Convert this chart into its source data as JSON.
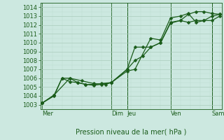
{
  "background_color": "#cce8e0",
  "grid_color_major": "#aaccbb",
  "grid_color_minor": "#bbddd0",
  "line_color": "#1a5c1a",
  "xlabel": "Pression niveau de la mer( hPa )",
  "ylim": [
    1002.5,
    1014.5
  ],
  "yticks": [
    1003,
    1004,
    1005,
    1006,
    1007,
    1008,
    1009,
    1010,
    1011,
    1012,
    1013,
    1014
  ],
  "xlim": [
    -0.1,
    9.1
  ],
  "x_day_labels": [
    "Mer",
    "Dim",
    "Jeu",
    "Ven",
    "Sam"
  ],
  "x_day_positions": [
    0.0,
    3.5,
    4.3,
    6.5,
    8.6
  ],
  "x_vlines": [
    0.0,
    3.5,
    4.3,
    6.5,
    8.6
  ],
  "line1_x": [
    0.0,
    0.6,
    1.0,
    1.4,
    1.8,
    2.2,
    2.6,
    3.0,
    3.5,
    4.3,
    4.7,
    5.1,
    5.5,
    6.0,
    6.5,
    7.0,
    7.4,
    7.8,
    8.2,
    8.6,
    9.0
  ],
  "line1_y": [
    1003.2,
    1004.0,
    1006.0,
    1006.0,
    1005.5,
    1005.3,
    1005.2,
    1005.3,
    1005.5,
    1007.0,
    1009.5,
    1009.5,
    1009.5,
    1010.0,
    1012.2,
    1012.5,
    1013.2,
    1013.5,
    1013.5,
    1013.3,
    1013.2
  ],
  "line2_x": [
    0.0,
    0.6,
    1.0,
    1.4,
    1.8,
    2.2,
    2.6,
    3.0,
    3.5,
    4.3,
    4.7,
    5.1,
    5.5,
    6.0,
    6.5,
    7.0,
    7.4,
    7.8,
    8.2,
    8.6,
    9.0
  ],
  "line2_y": [
    1003.2,
    1004.1,
    1006.0,
    1005.6,
    1005.5,
    1005.3,
    1005.3,
    1005.4,
    1005.5,
    1007.0,
    1008.0,
    1008.5,
    1009.5,
    1010.0,
    1012.3,
    1012.5,
    1012.3,
    1012.5,
    1012.5,
    1012.5,
    1013.0
  ],
  "line3_x": [
    0.0,
    0.6,
    1.4,
    2.0,
    2.6,
    3.2,
    3.5,
    4.3,
    4.7,
    5.5,
    6.0,
    6.5,
    7.0,
    7.4,
    7.8,
    8.2,
    8.6,
    9.0
  ],
  "line3_y": [
    1003.2,
    1004.1,
    1006.0,
    1005.7,
    1005.4,
    1005.3,
    1005.5,
    1006.8,
    1007.0,
    1010.5,
    1010.3,
    1012.8,
    1013.0,
    1013.3,
    1012.3,
    1012.5,
    1013.0,
    1013.2
  ],
  "marker_size": 2.5,
  "linewidth": 0.9,
  "xlabel_fontsize": 7,
  "tick_fontsize": 6,
  "label_fontsize": 6
}
